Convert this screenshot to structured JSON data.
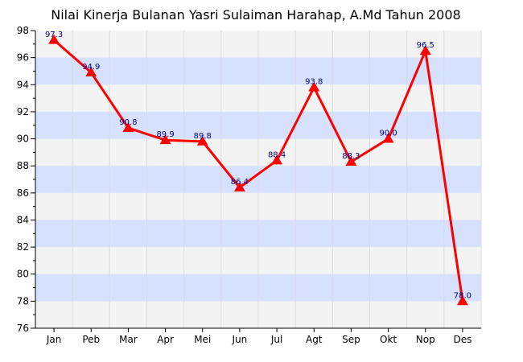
{
  "chart_data": {
    "type": "line",
    "title": "Nilai Kinerja Bulanan Yasri Sulaiman Harahap, A.Md Tahun 2008",
    "xlabel": "",
    "ylabel": "",
    "categories": [
      "Jan",
      "Peb",
      "Mar",
      "Apr",
      "Mei",
      "Jun",
      "Jul",
      "Agt",
      "Sep",
      "Okt",
      "Nop",
      "Des"
    ],
    "series": [
      {
        "values": [
          97.3,
          94.9,
          90.8,
          89.9,
          89.8,
          86.4,
          88.4,
          93.8,
          88.3,
          90.0,
          96.5,
          78.0
        ],
        "data_labels": [
          "97.3",
          "94.9",
          "90.8",
          "89.9",
          "89.8",
          "86.4",
          "88.4",
          "93.8",
          "88.3",
          "90.0",
          "96.5",
          "78.0"
        ]
      }
    ],
    "ylim": [
      76,
      98
    ],
    "yticks": [
      "76",
      "78",
      "80",
      "82",
      "84",
      "86",
      "88",
      "90",
      "92",
      "94",
      "96",
      "98"
    ],
    "grid": true,
    "legend": "none",
    "colors": {
      "line": "#ff0000",
      "marker": "#ff0000",
      "band_alt": "#d6e0ff",
      "band_base": "#f3f3f3",
      "data_label": "#000088",
      "axis": "#000000"
    }
  }
}
